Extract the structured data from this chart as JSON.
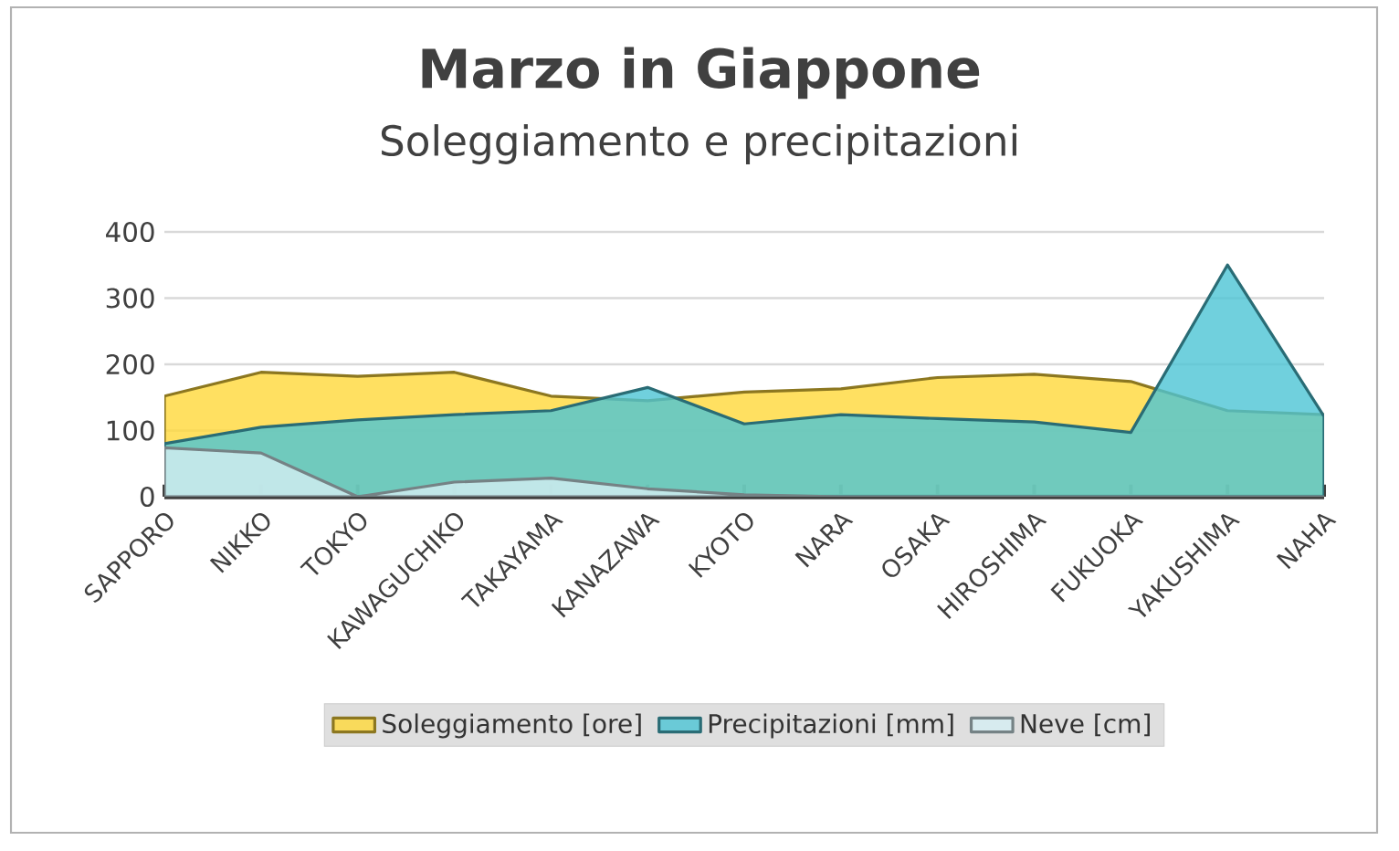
{
  "chart_data": {
    "type": "area",
    "title": "Marzo in Giappone",
    "subtitle": "Soleggiamento e precipitazioni",
    "categories": [
      "SAPPORO",
      "NIKKO",
      "TOKYO",
      "KAWAGUCHIKO",
      "TAKAYAMA",
      "KANAZAWA",
      "KYOTO",
      "NARA",
      "OSAKA",
      "HIROSHIMA",
      "FUKUOKA",
      "YAKUSHIMA",
      "NAHA"
    ],
    "series": [
      {
        "name": "Soleggiamento [ore]",
        "color": "#ffd83a",
        "values": [
          152,
          188,
          182,
          188,
          152,
          145,
          158,
          163,
          180,
          185,
          174,
          130,
          124
        ]
      },
      {
        "name": "Precipitazioni [mm]",
        "color": "#4cc4d4",
        "values": [
          80,
          105,
          116,
          124,
          130,
          165,
          110,
          124,
          118,
          113,
          97,
          350,
          121
        ]
      },
      {
        "name": "Neve [cm]",
        "color": "#d4edf2",
        "values": [
          74,
          66,
          0,
          22,
          28,
          12,
          3,
          0,
          0,
          0,
          0,
          0,
          0
        ]
      }
    ],
    "ylim": [
      0,
      400
    ],
    "yticks": [
      0,
      100,
      200,
      300,
      400
    ],
    "grid": "y",
    "legend": "bottom"
  }
}
